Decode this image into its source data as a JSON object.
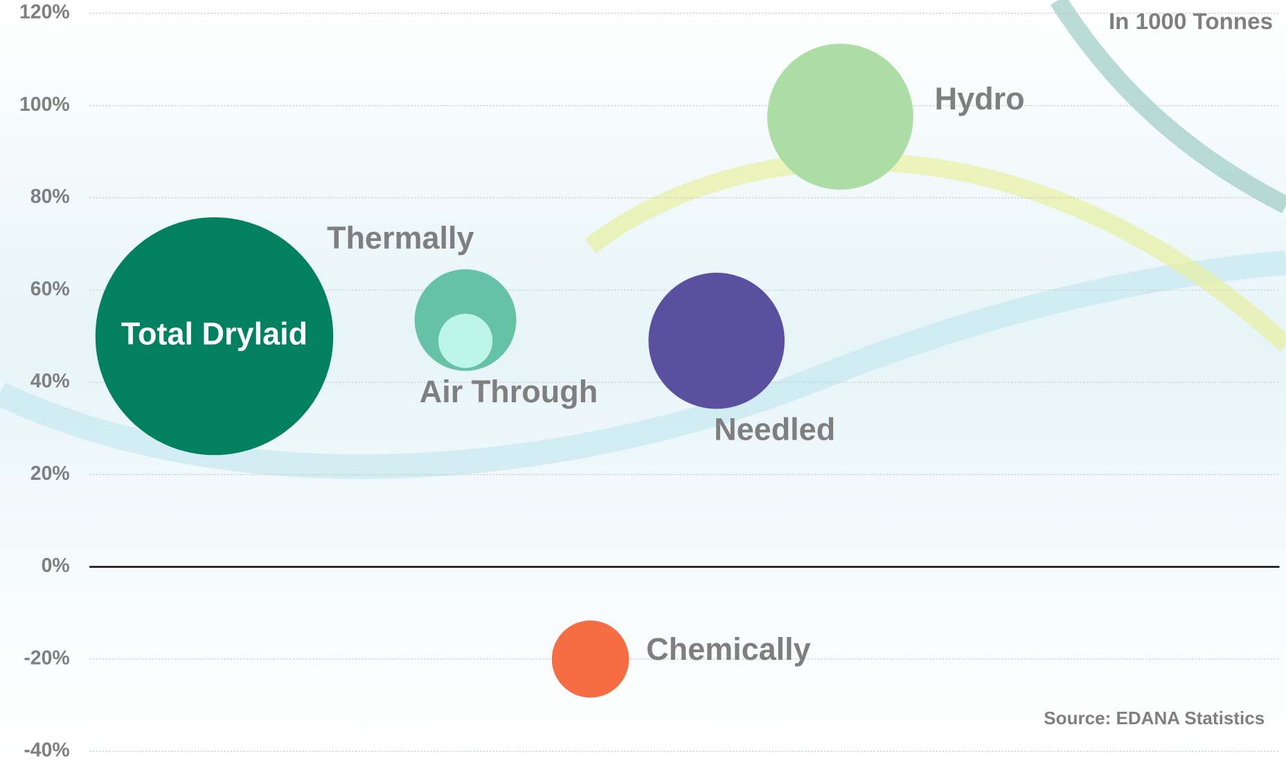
{
  "chart_data": {
    "type": "bubble",
    "unit_note": "In 1000 Tonnes",
    "source": "Source: EDANA Statistics",
    "ylim": [
      -40,
      120
    ],
    "yticks": [
      {
        "value": -40,
        "label": "-40%"
      },
      {
        "value": -20,
        "label": "-20%"
      },
      {
        "value": 0,
        "label": "0%"
      },
      {
        "value": 20,
        "label": "20%"
      },
      {
        "value": 40,
        "label": "40%"
      },
      {
        "value": 60,
        "label": "60%"
      },
      {
        "value": 80,
        "label": "80%"
      },
      {
        "value": 100,
        "label": "100%"
      },
      {
        "value": 120,
        "label": "120%"
      }
    ],
    "xlim": [
      0,
      100
    ],
    "grid": true,
    "series": [
      {
        "name": "Total Drylaid",
        "color": "#038060",
        "x": [
          10.5
        ],
        "values": [
          50
        ],
        "sizes": [
          2100
        ]
      },
      {
        "name": "Thermally",
        "color": "#66c2a5",
        "x": [
          31.6
        ],
        "values": [
          53.5
        ],
        "sizes": [
          384
        ]
      },
      {
        "name": "Air Through",
        "color": "#bdf5e8",
        "x": [
          31.6
        ],
        "values": [
          49
        ],
        "sizes": [
          109
        ]
      },
      {
        "name": "Needled",
        "color": "#5b4fa0",
        "x": [
          52.7
        ],
        "values": [
          49
        ],
        "sizes": [
          688
        ]
      },
      {
        "name": "Hydro",
        "color": "#abdda4",
        "x": [
          63.1
        ],
        "values": [
          97.6
        ],
        "sizes": [
          791
        ]
      },
      {
        "name": "Chemically",
        "color": "#f46d43",
        "x": [
          42.1
        ],
        "values": [
          -20
        ],
        "sizes": [
          221
        ]
      }
    ]
  }
}
